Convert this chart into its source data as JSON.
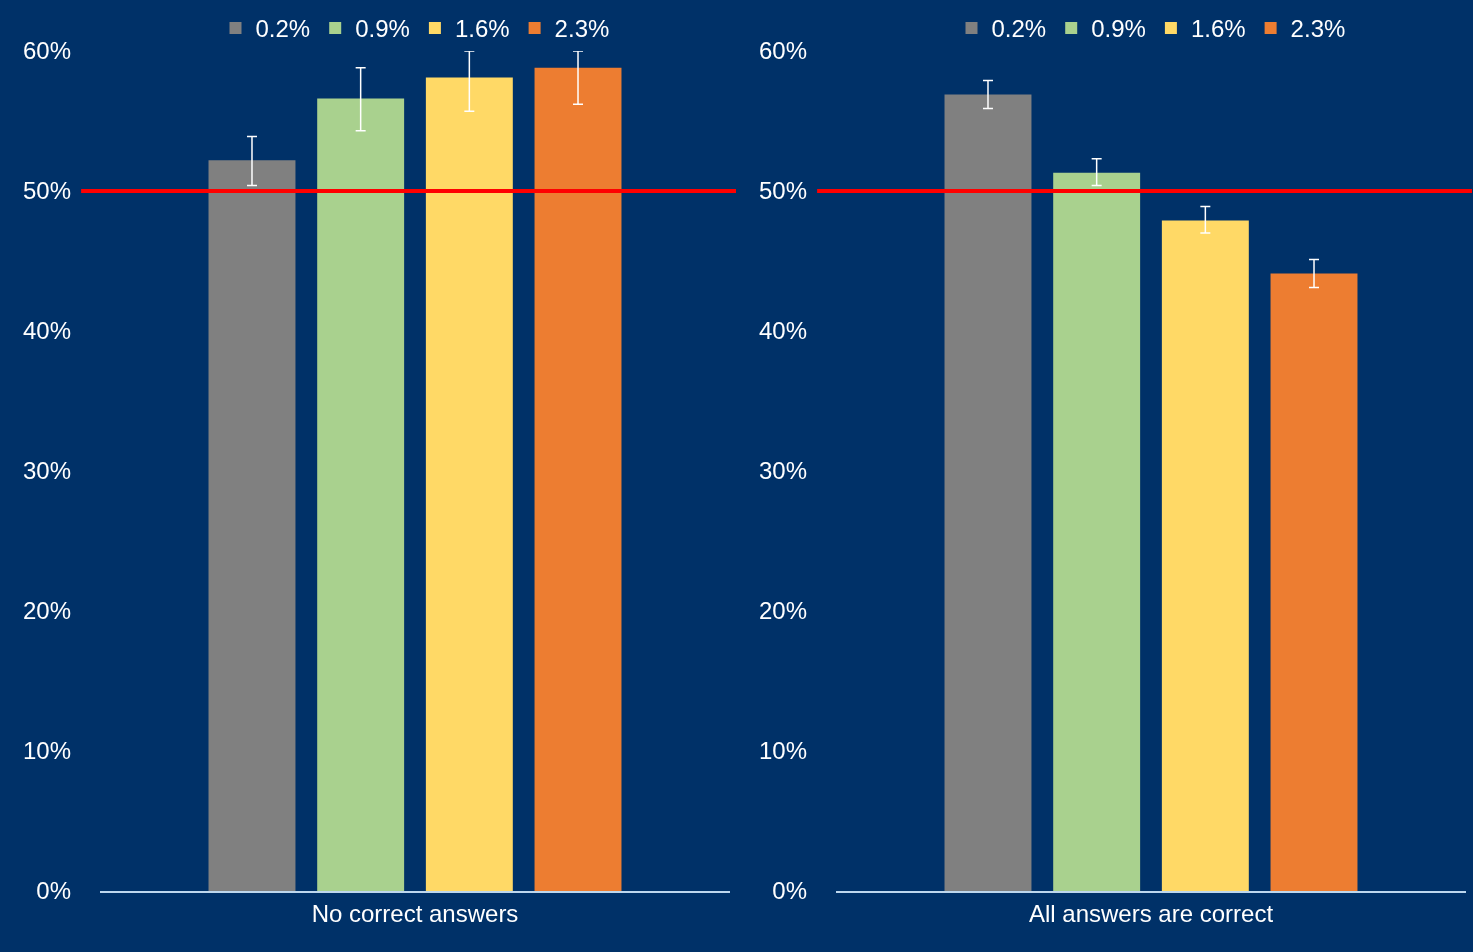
{
  "chart_data": [
    {
      "type": "bar",
      "categories": [
        "No correct answers"
      ],
      "series": [
        {
          "name": "0.2%",
          "color": "#808080",
          "values": [
            52.2
          ],
          "errors": [
            [
              50.4,
              53.9
            ]
          ]
        },
        {
          "name": "0.9%",
          "color": "#a9d18e",
          "values": [
            56.6
          ],
          "errors": [
            [
              54.3,
              58.8
            ]
          ]
        },
        {
          "name": "1.6%",
          "color": "#ffd966",
          "values": [
            58.1
          ],
          "errors": [
            [
              55.7,
              60
            ]
          ]
        },
        {
          "name": "2.3%",
          "color": "#ed7d31",
          "values": [
            58.8
          ],
          "errors": [
            [
              56.2,
              60
            ]
          ]
        }
      ],
      "ylim": [
        0,
        60
      ],
      "yticks": [
        {
          "value": 0,
          "label": "0%"
        },
        {
          "value": 10,
          "label": "10%"
        },
        {
          "value": 20,
          "label": "20%"
        },
        {
          "value": 30,
          "label": "30%"
        },
        {
          "value": 40,
          "label": "40%"
        },
        {
          "value": 50,
          "label": "50%"
        },
        {
          "value": 60,
          "label": "60%"
        }
      ],
      "ref_lines": [
        {
          "axis": "y",
          "value": 50,
          "color": "#ff0000"
        }
      ],
      "legend": "top"
    },
    {
      "type": "bar",
      "categories": [
        "All answers are correct"
      ],
      "series": [
        {
          "name": "0.2%",
          "color": "#808080",
          "values": [
            56.9
          ],
          "errors": [
            [
              55.9,
              57.9
            ]
          ]
        },
        {
          "name": "0.9%",
          "color": "#a9d18e",
          "values": [
            51.3
          ],
          "errors": [
            [
              50.4,
              52.3
            ]
          ]
        },
        {
          "name": "1.6%",
          "color": "#ffd966",
          "values": [
            47.9
          ],
          "errors": [
            [
              47.0,
              48.9
            ]
          ]
        },
        {
          "name": "2.3%",
          "color": "#ed7d31",
          "values": [
            44.1
          ],
          "errors": [
            [
              43.1,
              45.1
            ]
          ]
        }
      ],
      "ylim": [
        0,
        60
      ],
      "yticks": [
        {
          "value": 0,
          "label": "0%"
        },
        {
          "value": 10,
          "label": "10%"
        },
        {
          "value": 20,
          "label": "20%"
        },
        {
          "value": 30,
          "label": "30%"
        },
        {
          "value": 40,
          "label": "40%"
        },
        {
          "value": 50,
          "label": "50%"
        },
        {
          "value": 60,
          "label": "60%"
        }
      ],
      "ref_lines": [
        {
          "axis": "y",
          "value": 50,
          "color": "#ff0000"
        }
      ],
      "legend": "top"
    }
  ]
}
